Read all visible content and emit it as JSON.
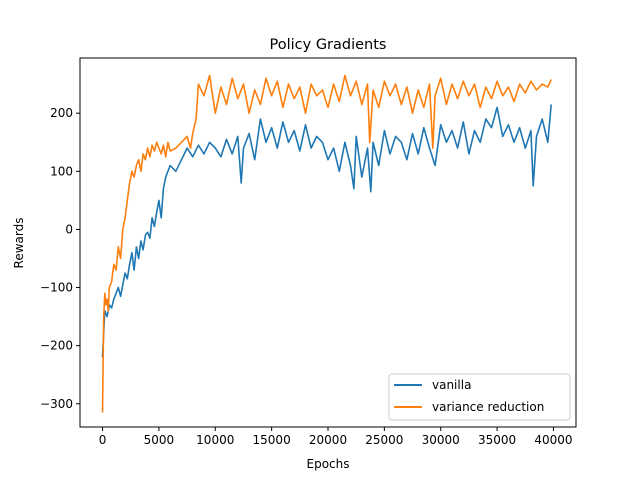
{
  "chart_data": {
    "type": "line",
    "title": "Policy Gradients",
    "xlabel": "Epochs",
    "ylabel": "Rewards",
    "xlim": [
      -2000,
      42000
    ],
    "ylim": [
      -340,
      295
    ],
    "xticks": [
      0,
      5000,
      10000,
      15000,
      20000,
      25000,
      30000,
      35000,
      40000
    ],
    "xtick_labels": [
      "0",
      "5000",
      "10000",
      "15000",
      "20000",
      "25000",
      "30000",
      "35000",
      "40000"
    ],
    "yticks": [
      -300,
      -200,
      -100,
      0,
      100,
      200
    ],
    "ytick_labels": [
      "−300",
      "−200",
      "−100",
      "0",
      "100",
      "200"
    ],
    "grid": false,
    "legend_position": "lower-right",
    "series": [
      {
        "name": "vanilla",
        "color": "#1f77b4",
        "x": [
          0,
          200,
          400,
          600,
          800,
          1000,
          1200,
          1400,
          1600,
          1800,
          2000,
          2200,
          2400,
          2600,
          2800,
          3000,
          3200,
          3400,
          3600,
          3800,
          4000,
          4200,
          4400,
          4600,
          4800,
          5000,
          5200,
          5400,
          5600,
          5800,
          6000,
          6500,
          7000,
          7500,
          8000,
          8500,
          9000,
          9500,
          10000,
          10500,
          11000,
          11500,
          12000,
          12300,
          12500,
          13000,
          13500,
          14000,
          14500,
          15000,
          15500,
          16000,
          16500,
          17000,
          17500,
          18000,
          18500,
          19000,
          19500,
          20000,
          20500,
          21000,
          21500,
          22000,
          22300,
          22500,
          23000,
          23500,
          23800,
          24000,
          24500,
          25000,
          25500,
          26000,
          26500,
          27000,
          27500,
          28000,
          28500,
          29000,
          29500,
          30000,
          30500,
          31000,
          31500,
          32000,
          32500,
          33000,
          33500,
          34000,
          34500,
          35000,
          35500,
          36000,
          36500,
          37000,
          37500,
          38000,
          38200,
          38500,
          39000,
          39500,
          39800
        ],
        "y": [
          -220,
          -140,
          -150,
          -130,
          -135,
          -120,
          -110,
          -100,
          -115,
          -95,
          -75,
          -85,
          -60,
          -40,
          -70,
          -30,
          -50,
          -20,
          -35,
          -10,
          -5,
          -15,
          20,
          5,
          30,
          50,
          20,
          70,
          90,
          100,
          110,
          100,
          120,
          140,
          125,
          145,
          130,
          150,
          140,
          125,
          155,
          130,
          160,
          80,
          140,
          165,
          120,
          190,
          150,
          175,
          140,
          185,
          150,
          170,
          135,
          180,
          140,
          160,
          150,
          120,
          140,
          100,
          150,
          110,
          70,
          160,
          90,
          140,
          65,
          150,
          110,
          170,
          130,
          160,
          150,
          120,
          165,
          130,
          175,
          140,
          110,
          180,
          150,
          170,
          140,
          185,
          130,
          170,
          150,
          190,
          175,
          210,
          160,
          180,
          150,
          175,
          140,
          170,
          75,
          160,
          190,
          150,
          215
        ]
      },
      {
        "name": "variance reduction",
        "color": "#ff7f0e",
        "x": [
          0,
          100,
          200,
          300,
          400,
          500,
          600,
          800,
          1000,
          1200,
          1400,
          1600,
          1800,
          2000,
          2200,
          2400,
          2600,
          2800,
          3000,
          3200,
          3400,
          3600,
          3800,
          4000,
          4200,
          4400,
          4600,
          4800,
          5000,
          5200,
          5400,
          5600,
          5800,
          6000,
          6500,
          7000,
          7500,
          7800,
          8000,
          8300,
          8500,
          9000,
          9500,
          10000,
          10500,
          11000,
          11500,
          12000,
          12500,
          13000,
          13500,
          14000,
          14500,
          15000,
          15500,
          16000,
          16500,
          17000,
          17500,
          18000,
          18500,
          19000,
          19500,
          20000,
          20500,
          21000,
          21500,
          22000,
          22500,
          23000,
          23500,
          23700,
          24000,
          24500,
          25000,
          25500,
          26000,
          26500,
          27000,
          27500,
          28000,
          28500,
          29000,
          29300,
          29500,
          30000,
          30500,
          31000,
          31500,
          32000,
          32500,
          33000,
          33500,
          34000,
          34500,
          35000,
          35500,
          36000,
          36500,
          37000,
          37500,
          38000,
          38500,
          39000,
          39500,
          39800
        ],
        "y": [
          -315,
          -150,
          -110,
          -130,
          -120,
          -140,
          -100,
          -90,
          -60,
          -70,
          -30,
          -50,
          0,
          20,
          50,
          80,
          100,
          90,
          110,
          120,
          100,
          130,
          120,
          140,
          125,
          145,
          135,
          150,
          140,
          130,
          145,
          125,
          150,
          135,
          140,
          150,
          160,
          140,
          165,
          190,
          250,
          230,
          265,
          200,
          245,
          215,
          260,
          225,
          250,
          200,
          240,
          215,
          260,
          230,
          255,
          210,
          250,
          225,
          245,
          200,
          250,
          230,
          240,
          210,
          250,
          220,
          265,
          230,
          255,
          215,
          250,
          150,
          240,
          210,
          255,
          230,
          250,
          215,
          245,
          200,
          240,
          210,
          250,
          140,
          230,
          260,
          215,
          250,
          225,
          255,
          230,
          250,
          210,
          245,
          225,
          255,
          230,
          245,
          220,
          250,
          235,
          255,
          240,
          250,
          245,
          258
        ]
      }
    ]
  }
}
